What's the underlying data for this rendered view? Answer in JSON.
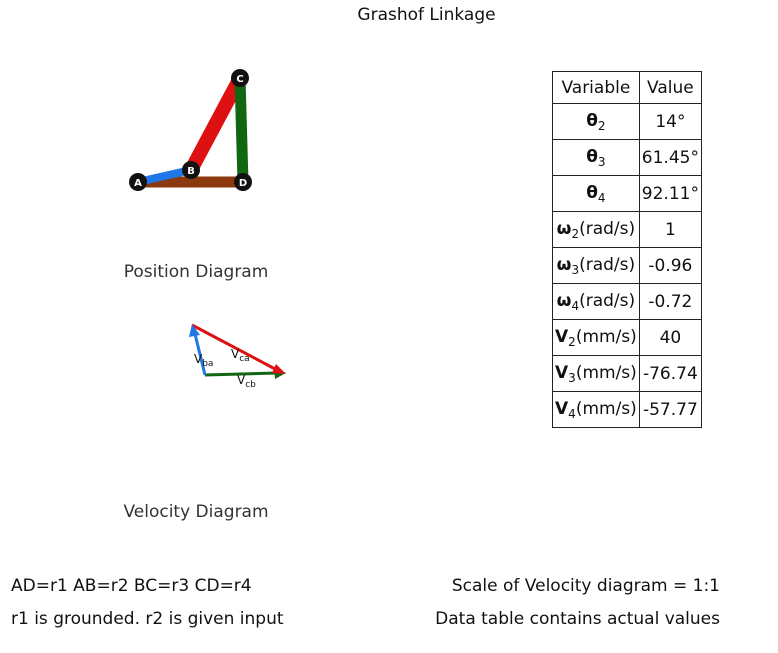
{
  "title": "Grashof Linkage",
  "position_diagram": {
    "caption": "Position Diagram",
    "joints": [
      "A",
      "B",
      "C",
      "D"
    ],
    "link_colors": {
      "AB": "#1f77e8",
      "BC": "#dd1111",
      "CD": "#116611",
      "AD": "#8b3a0e"
    }
  },
  "velocity_diagram": {
    "caption": "Velocity Diagram",
    "vectors": [
      {
        "main": "V",
        "sub": "ba",
        "color": "#1f77e8"
      },
      {
        "main": "V",
        "sub": "ca",
        "color": "#dd1111"
      },
      {
        "main": "V",
        "sub": "cb",
        "color": "#116611"
      }
    ]
  },
  "table": {
    "headers": [
      "Variable",
      "Value"
    ],
    "rows": [
      {
        "sym": "θ",
        "sub": "2",
        "unit": "",
        "value": "14°"
      },
      {
        "sym": "θ",
        "sub": "3",
        "unit": "",
        "value": "61.45°"
      },
      {
        "sym": "θ",
        "sub": "4",
        "unit": "",
        "value": "92.11°"
      },
      {
        "sym": "ω",
        "sub": "2",
        "unit": "(rad/s)",
        "value": "1"
      },
      {
        "sym": "ω",
        "sub": "3",
        "unit": "(rad/s)",
        "value": "-0.96"
      },
      {
        "sym": "ω",
        "sub": "4",
        "unit": "(rad/s)",
        "value": "-0.72"
      },
      {
        "sym": "V",
        "sub": "2",
        "unit": "(mm/s)",
        "value": "40"
      },
      {
        "sym": "V",
        "sub": "3",
        "unit": "(mm/s)",
        "value": "-76.74"
      },
      {
        "sym": "V",
        "sub": "4",
        "unit": "(mm/s)",
        "value": "-57.77"
      }
    ]
  },
  "footer": {
    "link_definitions": "AD=r1 AB=r2 BC=r3 CD=r4",
    "grounding_note": "r1 is grounded. r2 is given input",
    "scale_note": "Scale of Velocity diagram = 1:1",
    "data_note": "Data table contains actual values"
  }
}
